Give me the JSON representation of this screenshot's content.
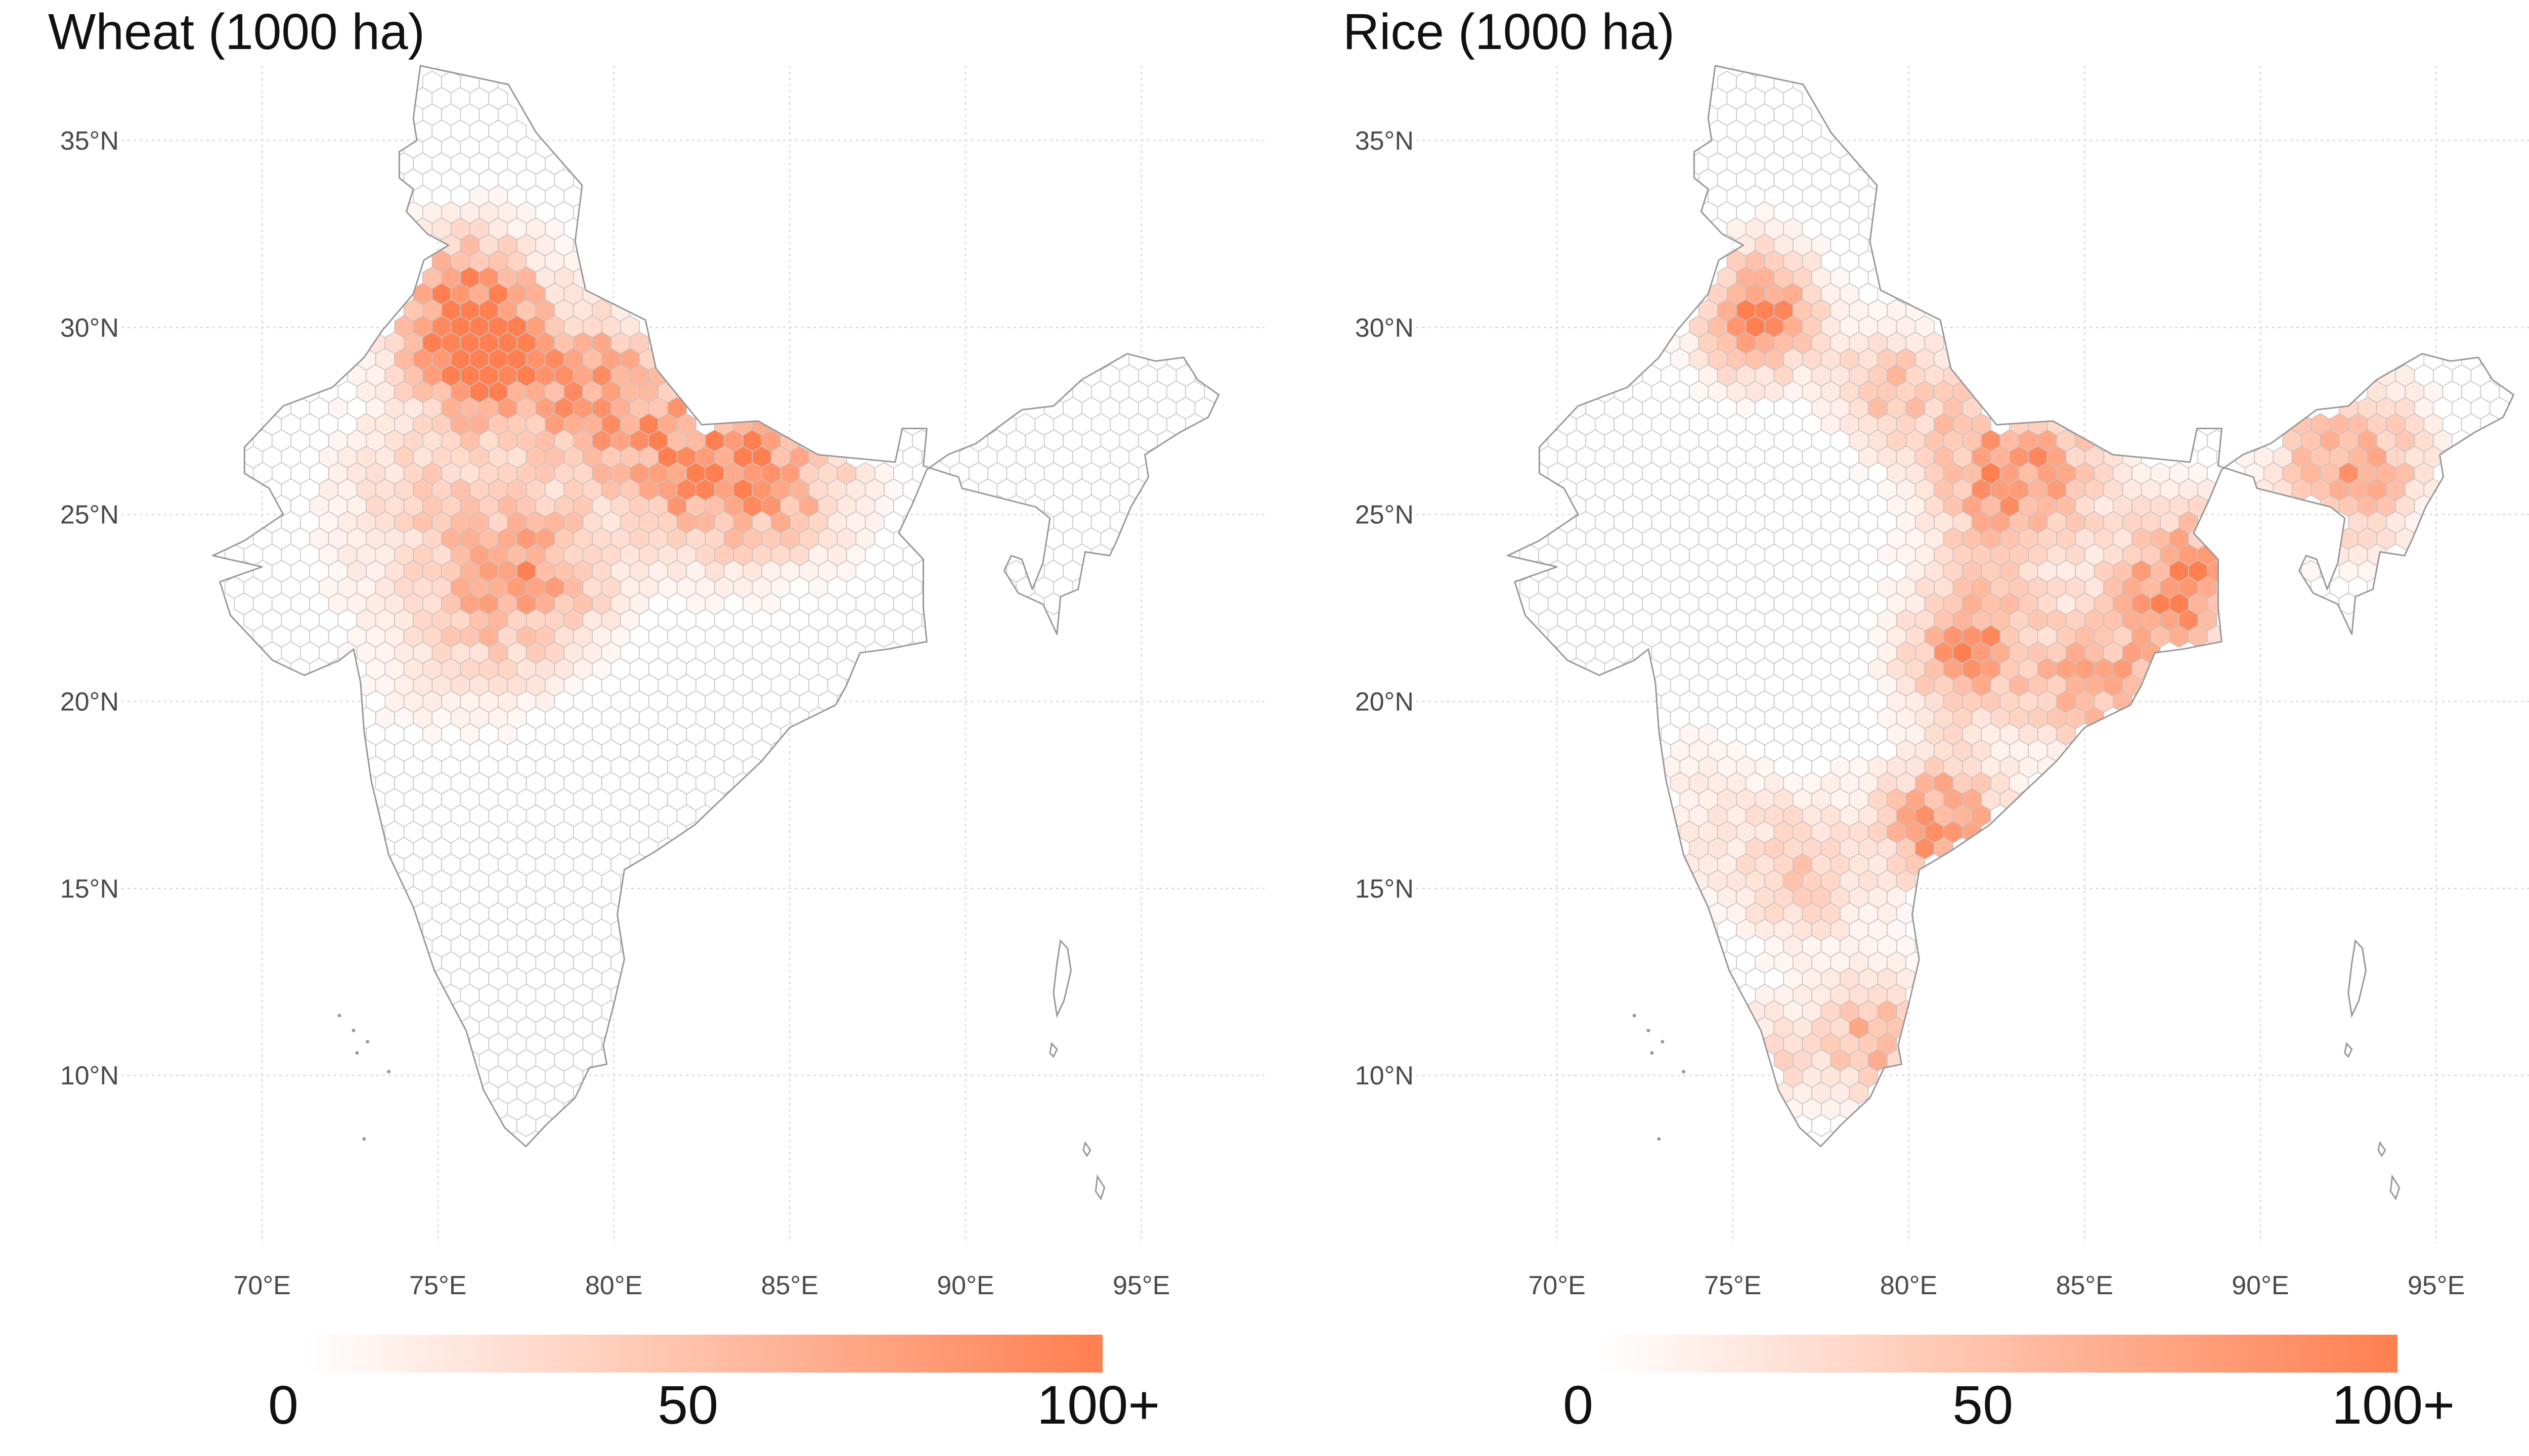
{
  "panels": [
    {
      "id": "wheat",
      "title": "Wheat (1000 ha)",
      "legend": {
        "labels": [
          "0",
          "50",
          "100+"
        ],
        "color_low": "#ffffff",
        "color_high": "#ff7f50",
        "range": [
          0,
          100
        ]
      },
      "hotspots": [
        {
          "lon": 75.8,
          "lat": 30.3,
          "value": 95,
          "spread": 2.0
        },
        {
          "lon": 76.5,
          "lat": 29.0,
          "value": 80,
          "spread": 1.5
        },
        {
          "lon": 79.5,
          "lat": 28.2,
          "value": 72,
          "spread": 2.0
        },
        {
          "lon": 82.5,
          "lat": 26.3,
          "value": 75,
          "spread": 2.2
        },
        {
          "lon": 85.0,
          "lat": 26.0,
          "value": 48,
          "spread": 2.0
        },
        {
          "lon": 77.5,
          "lat": 23.3,
          "value": 65,
          "spread": 2.2
        },
        {
          "lon": 74.5,
          "lat": 25.5,
          "value": 28,
          "spread": 2.5
        },
        {
          "lon": 75.0,
          "lat": 21.5,
          "value": 15,
          "spread": 2.5
        }
      ]
    },
    {
      "id": "rice",
      "title": "Rice (1000 ha)",
      "legend": {
        "labels": [
          "0",
          "50",
          "100+"
        ],
        "color_low": "#ffffff",
        "color_high": "#ff7f50",
        "range": [
          0,
          100
        ]
      },
      "hotspots": [
        {
          "lon": 75.7,
          "lat": 30.4,
          "value": 85,
          "spread": 1.6
        },
        {
          "lon": 83.0,
          "lat": 26.2,
          "value": 78,
          "spread": 2.4
        },
        {
          "lon": 87.8,
          "lat": 23.2,
          "value": 95,
          "spread": 1.7
        },
        {
          "lon": 85.5,
          "lat": 20.5,
          "value": 62,
          "spread": 1.8
        },
        {
          "lon": 81.8,
          "lat": 21.3,
          "value": 75,
          "spread": 1.8
        },
        {
          "lon": 81.0,
          "lat": 16.7,
          "value": 85,
          "spread": 1.6
        },
        {
          "lon": 79.0,
          "lat": 11.0,
          "value": 60,
          "spread": 1.5
        },
        {
          "lon": 92.5,
          "lat": 26.4,
          "value": 70,
          "spread": 2.0
        },
        {
          "lon": 76.0,
          "lat": 10.5,
          "value": 30,
          "spread": 1.3
        },
        {
          "lon": 77.0,
          "lat": 15.5,
          "value": 35,
          "spread": 2.0
        },
        {
          "lon": 79.5,
          "lat": 28.5,
          "value": 45,
          "spread": 1.5
        },
        {
          "lon": 73.5,
          "lat": 17.0,
          "value": 15,
          "spread": 2.2
        }
      ]
    }
  ],
  "axes": {
    "lon_ticks": [
      70,
      75,
      80,
      85,
      90,
      95
    ],
    "lat_ticks": [
      35,
      30,
      25,
      20,
      15,
      10
    ],
    "lon_tick_labels": [
      "70°E",
      "75°E",
      "80°E",
      "85°E",
      "90°E",
      "95°E"
    ],
    "lat_tick_labels": [
      "35°N",
      "30°N",
      "25°N",
      "20°N",
      "15°N",
      "10°N"
    ],
    "lon_range": [
      66.0,
      98.5
    ],
    "lat_range": [
      5.5,
      37.0
    ],
    "grid": true
  },
  "colors": {
    "fill_high": "#ff7f50",
    "border": "#999999",
    "hex_stroke": "#c4c4c4",
    "grid": "#d9d9d9"
  }
}
